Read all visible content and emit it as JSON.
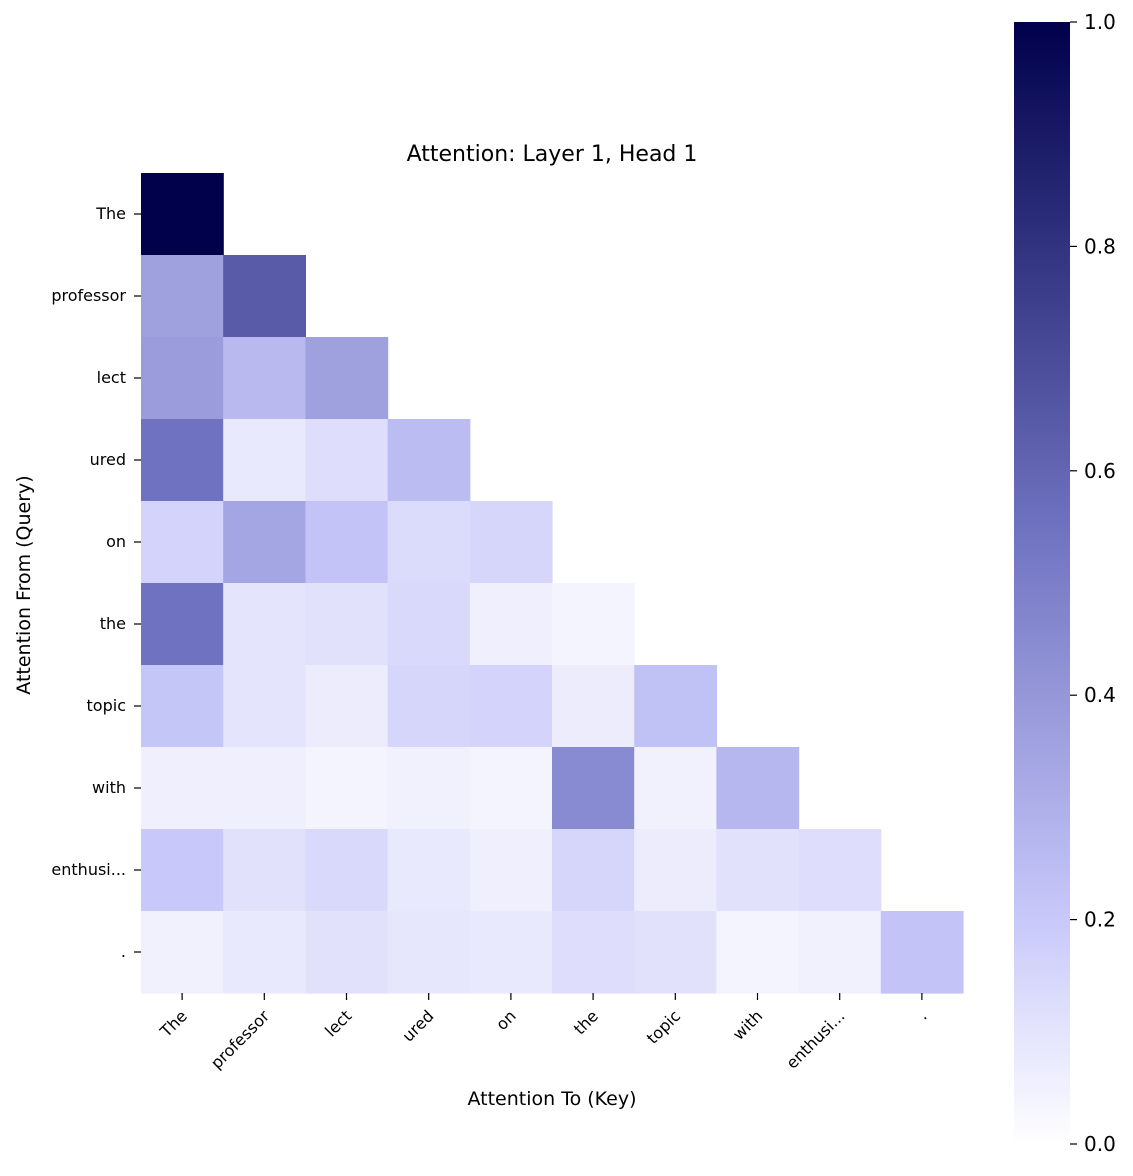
{
  "chart_data": {
    "type": "heatmap",
    "title": "Attention: Layer 1, Head 1",
    "xlabel": "Attention To (Key)",
    "ylabel": "Attention From (Query)",
    "x_tokens": [
      "The",
      "professor",
      "lect",
      "ured",
      "on",
      "the",
      "topic",
      "with",
      "enthusi...",
      "."
    ],
    "y_tokens": [
      "The",
      "professor",
      "lect",
      "ured",
      "on",
      "the",
      "topic",
      "with",
      "enthusi...",
      "."
    ],
    "mask": "upper-triangle",
    "values": [
      [
        1.0,
        null,
        null,
        null,
        null,
        null,
        null,
        null,
        null,
        null
      ],
      [
        0.36,
        0.64,
        null,
        null,
        null,
        null,
        null,
        null,
        null,
        null
      ],
      [
        0.38,
        0.26,
        0.36,
        null,
        null,
        null,
        null,
        null,
        null,
        null
      ],
      [
        0.55,
        0.08,
        0.12,
        0.25,
        null,
        null,
        null,
        null,
        null,
        null
      ],
      [
        0.16,
        0.34,
        0.22,
        0.13,
        0.15,
        null,
        null,
        null,
        null,
        null
      ],
      [
        0.55,
        0.1,
        0.11,
        0.14,
        0.06,
        0.04,
        null,
        null,
        null,
        null
      ],
      [
        0.21,
        0.1,
        0.07,
        0.15,
        0.16,
        0.07,
        0.23,
        null,
        null,
        null
      ],
      [
        0.06,
        0.06,
        0.04,
        0.05,
        0.04,
        0.45,
        0.05,
        0.27,
        null,
        null
      ],
      [
        0.2,
        0.11,
        0.14,
        0.08,
        0.06,
        0.15,
        0.07,
        0.11,
        0.12,
        null
      ],
      [
        0.05,
        0.08,
        0.11,
        0.09,
        0.08,
        0.12,
        0.11,
        0.04,
        0.05,
        0.22
      ]
    ],
    "colorbar": {
      "range": [
        0.0,
        1.0
      ],
      "ticks": [
        "0.0",
        "0.2",
        "0.4",
        "0.6",
        "0.8",
        "1.0"
      ],
      "colors": [
        "#ffffff",
        "#c8c8fa",
        "#6f72c0",
        "#00004b"
      ]
    }
  }
}
